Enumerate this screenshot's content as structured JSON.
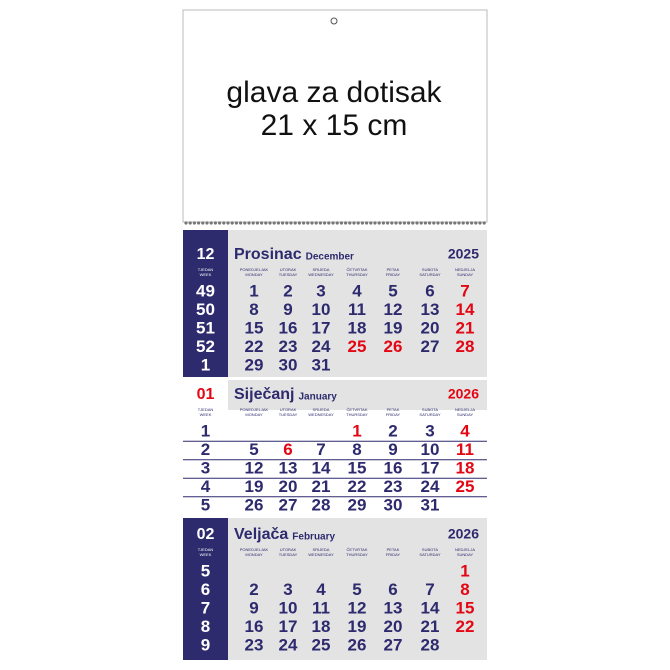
{
  "header": {
    "title": "glava za dotisak",
    "size": "21 x 15 cm"
  },
  "week_header": [
    "TJEDAN",
    "WEEK"
  ],
  "day_headers": [
    [
      "PONEDJELJAK",
      "MONDAY"
    ],
    [
      "UTORAK",
      "TUESDAY"
    ],
    [
      "SRIJEDA",
      "WEDNESDAY"
    ],
    [
      "ČETVRTAK",
      "THURSDAY"
    ],
    [
      "PETAK",
      "FRIDAY"
    ],
    [
      "SUBOTA",
      "SATURDAY"
    ],
    [
      "NEDJELJA",
      "SUNDAY"
    ]
  ],
  "months": [
    {
      "number": "12",
      "name": "Prosinac",
      "name_en": "December",
      "year": "2025",
      "panel": "navy",
      "accent_color": "#2d2a6e",
      "holidays": [
        25,
        26
      ],
      "weeks": [
        {
          "week": 49,
          "days": [
            1,
            2,
            3,
            4,
            5,
            6,
            7
          ]
        },
        {
          "week": 50,
          "days": [
            8,
            9,
            10,
            11,
            12,
            13,
            14
          ]
        },
        {
          "week": 51,
          "days": [
            15,
            16,
            17,
            18,
            19,
            20,
            21
          ]
        },
        {
          "week": 52,
          "days": [
            22,
            23,
            24,
            25,
            26,
            27,
            28
          ]
        },
        {
          "week": 1,
          "days": [
            29,
            30,
            31,
            null,
            null,
            null,
            null
          ]
        }
      ]
    },
    {
      "number": "01",
      "name": "Siječanj",
      "name_en": "January",
      "year": "2026",
      "panel": "white",
      "accent_color": "#e30613",
      "holidays": [
        1,
        6
      ],
      "weeks": [
        {
          "week": 1,
          "days": [
            null,
            null,
            null,
            1,
            2,
            3,
            4
          ]
        },
        {
          "week": 2,
          "days": [
            5,
            6,
            7,
            8,
            9,
            10,
            11
          ]
        },
        {
          "week": 3,
          "days": [
            12,
            13,
            14,
            15,
            16,
            17,
            18
          ]
        },
        {
          "week": 4,
          "days": [
            19,
            20,
            21,
            22,
            23,
            24,
            25
          ]
        },
        {
          "week": 5,
          "days": [
            26,
            27,
            28,
            29,
            30,
            31,
            null
          ]
        }
      ]
    },
    {
      "number": "02",
      "name": "Veljača",
      "name_en": "February",
      "year": "2026",
      "panel": "navy",
      "accent_color": "#2d2a6e",
      "holidays": [],
      "weeks": [
        {
          "week": 5,
          "days": [
            null,
            null,
            null,
            null,
            null,
            null,
            1
          ]
        },
        {
          "week": 6,
          "days": [
            2,
            3,
            4,
            5,
            6,
            7,
            8
          ]
        },
        {
          "week": 7,
          "days": [
            9,
            10,
            11,
            12,
            13,
            14,
            15
          ]
        },
        {
          "week": 8,
          "days": [
            16,
            17,
            18,
            19,
            20,
            21,
            22
          ]
        },
        {
          "week": 9,
          "days": [
            23,
            24,
            25,
            26,
            27,
            28,
            null
          ]
        }
      ]
    }
  ]
}
